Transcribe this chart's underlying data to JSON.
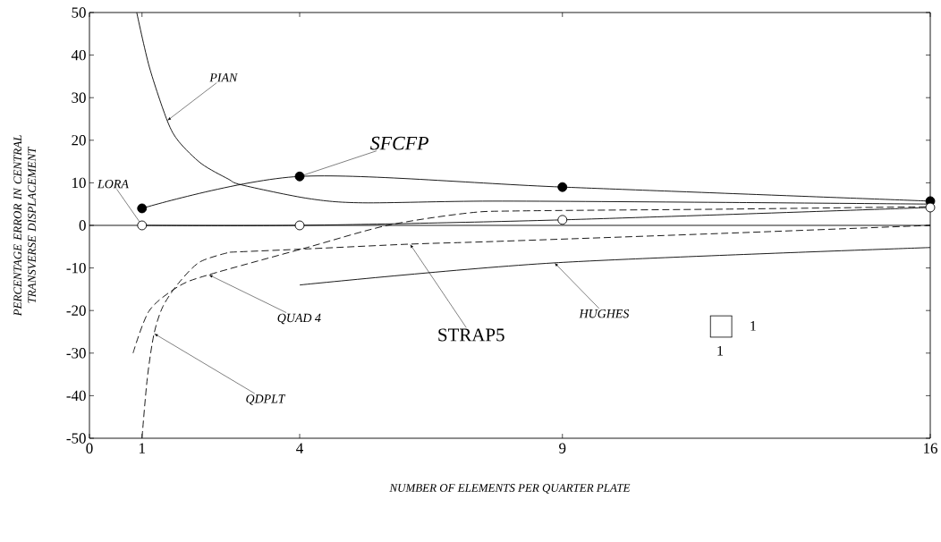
{
  "chart_data": {
    "type": "line",
    "xlabel": "NUMBER OF ELEMENTS PER QUARTER PLATE",
    "ylabel": "PERCENTAGE ERROR IN CENTRAL TRANSVERSE DISPLACEMENT",
    "xlim": [
      0,
      16
    ],
    "ylim": [
      -50,
      50
    ],
    "xticks": [
      0,
      1,
      4,
      9,
      16
    ],
    "yticks": [
      -50,
      -40,
      -30,
      -20,
      -10,
      0,
      10,
      20,
      30,
      40,
      50
    ],
    "ref_lines": [
      {
        "axis": "y",
        "value": 0,
        "color": "#000000"
      }
    ],
    "annotations": [
      "1",
      "1"
    ],
    "series": [
      {
        "name": "PIAN",
        "color": "#000000",
        "line_style": "solid",
        "x": [
          0.9,
          1.14,
          1.48,
          1.7,
          2.13,
          2.64,
          2.9,
          4.17,
          5.2,
          7.66,
          12,
          16
        ],
        "values": [
          50,
          37.2,
          24.6,
          19.7,
          14.5,
          10.9,
          9.5,
          6.3,
          5.3,
          5.7,
          5.4,
          5
        ]
      },
      {
        "name": "SFCFP",
        "color": "#000000",
        "line_style": "solid",
        "marker": "circle",
        "x": [
          1,
          4,
          9,
          16
        ],
        "values": [
          4,
          11.5,
          9,
          5.7
        ]
      },
      {
        "name": "LORA",
        "color": "#000000",
        "line_style": "solid",
        "marker": "circle",
        "x": [
          1,
          4,
          9,
          16
        ],
        "values": [
          0,
          0,
          1.3,
          4.2
        ]
      },
      {
        "name": "QUAD 4",
        "color": "#000000",
        "line_style": "dashed",
        "x": [
          0.83,
          1.14,
          1.7,
          2.27,
          4.14,
          5.67,
          7.2,
          8.2,
          12,
          16
        ],
        "values": [
          -30,
          -20,
          -14.3,
          -11.6,
          -5.2,
          0,
          2.9,
          3.4,
          3.8,
          4.4
        ]
      },
      {
        "name": "QDPLT",
        "color": "#000000",
        "line_style": "dashed",
        "x": [
          1,
          1.1,
          1.23,
          1.4,
          1.7,
          2.1,
          2.67
        ],
        "values": [
          -50,
          -36,
          -25.4,
          -19,
          -13.5,
          -8.6,
          -6.3
        ]
      },
      {
        "name": "STRAP5",
        "color": "#000000",
        "line_style": "dashed",
        "x": [
          2.67,
          4,
          6.1,
          7.66,
          12,
          16
        ],
        "values": [
          -6.3,
          -5.6,
          -4.4,
          -3.8,
          -1.9,
          0
        ]
      },
      {
        "name": "HUGHES",
        "color": "#000000",
        "line_style": "solid",
        "x": [
          4,
          8.85,
          16
        ],
        "values": [
          -14,
          -8.8,
          -5.2
        ]
      }
    ]
  }
}
